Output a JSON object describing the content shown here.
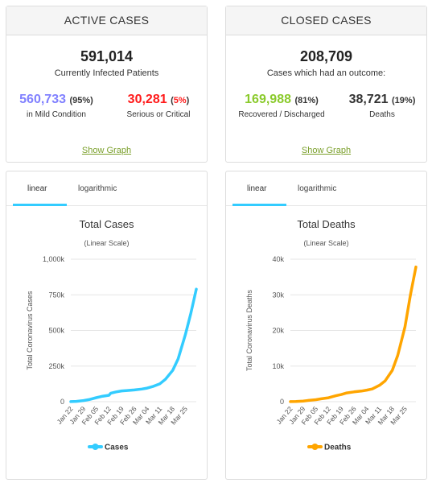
{
  "active": {
    "header": "ACTIVE CASES",
    "total": "591,014",
    "total_label": "Currently Infected Patients",
    "mild_value": "560,733",
    "mild_pct": "95%",
    "mild_label": "in Mild Condition",
    "serious_value": "30,281",
    "serious_pct": "5%",
    "serious_label": "Serious or Critical",
    "show_graph": "Show Graph"
  },
  "closed": {
    "header": "CLOSED CASES",
    "total": "208,709",
    "total_label": "Cases which had an outcome:",
    "recovered_value": "169,988",
    "recovered_pct": "81%",
    "recovered_label": "Recovered / Discharged",
    "deaths_value": "38,721",
    "deaths_pct": "19%",
    "deaths_label": "Deaths",
    "show_graph": "Show Graph"
  },
  "tabs": {
    "linear": "linear",
    "log": "logarithmic"
  },
  "colors": {
    "mild": "#8080ff",
    "serious": "#ff1a1a",
    "recovered": "#8ACA2B",
    "cases_line": "#33ccff",
    "deaths_line": "#FFA500"
  },
  "chart_data": [
    {
      "type": "line",
      "title": "Total Cases",
      "subtitle": "(Linear Scale)",
      "ylabel": "Total Coronavirus Cases",
      "xlabel": "",
      "ylim": [
        0,
        1000000
      ],
      "y_ticks": [
        "0",
        "250k",
        "500k",
        "750k",
        "1,000k"
      ],
      "x_ticks": [
        "Jan 22",
        "Jan 29",
        "Feb 05",
        "Feb 12",
        "Feb 19",
        "Feb 26",
        "Mar 04",
        "Mar 11",
        "Mar 18",
        "Mar 25"
      ],
      "legend": "Cases",
      "legend_position": "bottom",
      "series": [
        {
          "name": "Cases",
          "x": [
            "Jan 22",
            "Jan 25",
            "Jan 29",
            "Feb 01",
            "Feb 05",
            "Feb 08",
            "Feb 12",
            "Feb 13",
            "Feb 16",
            "Feb 19",
            "Feb 22",
            "Feb 26",
            "Mar 01",
            "Mar 04",
            "Mar 07",
            "Mar 11",
            "Mar 14",
            "Mar 18",
            "Mar 21",
            "Mar 25",
            "Mar 28",
            "Mar 31"
          ],
          "values": [
            580,
            2100,
            7800,
            14500,
            28000,
            37500,
            45000,
            60000,
            69000,
            75500,
            78500,
            82500,
            88500,
            95500,
            106000,
            126000,
            157000,
            219000,
            300000,
            470000,
            620000,
            790000
          ]
        }
      ]
    },
    {
      "type": "line",
      "title": "Total Deaths",
      "subtitle": "(Linear Scale)",
      "ylabel": "Total Coronavirus Deaths",
      "xlabel": "",
      "ylim": [
        0,
        40000
      ],
      "y_ticks": [
        "0",
        "10k",
        "20k",
        "30k",
        "40k"
      ],
      "x_ticks": [
        "Jan 22",
        "Jan 29",
        "Feb 05",
        "Feb 12",
        "Feb 19",
        "Feb 26",
        "Mar 04",
        "Mar 11",
        "Mar 18",
        "Mar 25"
      ],
      "legend": "Deaths",
      "legend_position": "bottom",
      "series": [
        {
          "name": "Deaths",
          "x": [
            "Jan 22",
            "Jan 25",
            "Jan 29",
            "Feb 01",
            "Feb 05",
            "Feb 08",
            "Feb 12",
            "Feb 16",
            "Feb 19",
            "Feb 22",
            "Feb 26",
            "Mar 01",
            "Mar 04",
            "Mar 07",
            "Mar 11",
            "Mar 14",
            "Mar 18",
            "Mar 21",
            "Mar 25",
            "Mar 28",
            "Mar 31"
          ],
          "values": [
            17,
            56,
            170,
            360,
            560,
            810,
            1110,
            1670,
            2010,
            2460,
            2760,
            2990,
            3250,
            3560,
            4600,
            5800,
            8800,
            13000,
            21000,
            30000,
            37800
          ]
        }
      ]
    }
  ]
}
